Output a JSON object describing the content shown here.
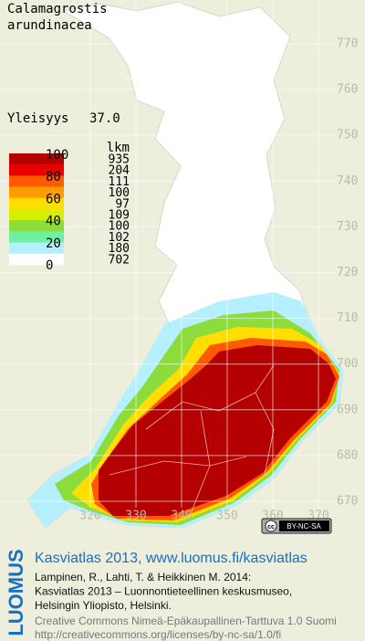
{
  "header": {
    "title_lines": [
      "Calamagrostis",
      "arundinacea"
    ],
    "frequency_label": "Yleisyys",
    "frequency_value": "37.0"
  },
  "legend": {
    "count_header": "lkm",
    "scale_labels": [
      "100",
      "80",
      "60",
      "40",
      "20",
      "0"
    ],
    "colors": [
      "#b40000",
      "#e80000",
      "#ff5a00",
      "#ff9c00",
      "#ffde00",
      "#d4f000",
      "#8cdc3c",
      "#6ef0a0",
      "#b4f0ff",
      "#ffffff"
    ],
    "counts": [
      "935",
      "204",
      "111",
      "100",
      "97",
      "109",
      "100",
      "102",
      "180",
      "702"
    ]
  },
  "grid": {
    "northing_labels": [
      "770",
      "760",
      "750",
      "740",
      "730",
      "720",
      "710",
      "700",
      "690",
      "680",
      "670"
    ],
    "easting_labels": [
      "320",
      "330",
      "340",
      "350",
      "360",
      "370"
    ]
  },
  "badge": {
    "icon": "cc",
    "text": "BY-NC-SA"
  },
  "footer": {
    "logo": "LUOMUS",
    "heading": "Kasviatlas 2013, www.luomus.fi/kasviatlas",
    "citation_lines": [
      "Lampinen, R., Lahti, T. & Heikkinen M. 2014:",
      "Kasviatlas 2013 – Luonnontieteellinen keskusmuseo,",
      "Helsingin Yliopisto, Helsinki."
    ],
    "license_lines": [
      "Creative Commons Nimeä-Epäkaupallinen-Tarttuva 1.0 Suomi",
      "http://creativecommons.org/licenses/by-nc-sa/1.0/fi"
    ]
  }
}
